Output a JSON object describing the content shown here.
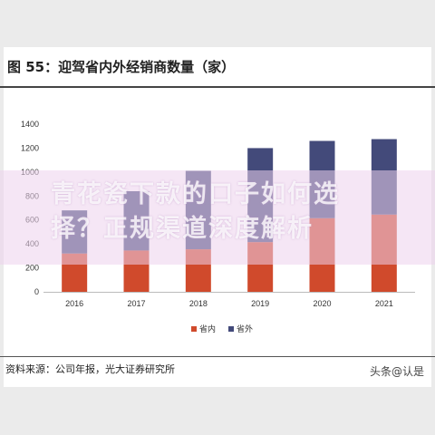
{
  "header": {
    "title": "图 55：迎驾省内外经销商数量（家）"
  },
  "footer": {
    "source": "资料来源：公司年报，光大证券研究所",
    "watermark": "头条@认是"
  },
  "overlay": {
    "line1": "青花瓷下款的口子如何选",
    "line2": "择？正规渠道深度解析"
  },
  "colors": {
    "domestic": "#d04a2c",
    "foreign": "#434a7a"
  },
  "chart_data": {
    "type": "bar",
    "stacked": true,
    "categories": [
      "2016",
      "2017",
      "2018",
      "2019",
      "2020",
      "2021"
    ],
    "series": [
      {
        "name": "省内",
        "values": [
          320,
          345,
          355,
          415,
          615,
          645
        ]
      },
      {
        "name": "省外",
        "values": [
          360,
          495,
          655,
          785,
          645,
          630
        ]
      }
    ],
    "ylim": [
      0,
      1400
    ],
    "yticks": [
      0,
      200,
      400,
      600,
      800,
      1000,
      1200,
      1400
    ],
    "grid": false,
    "legend": "bottom"
  }
}
